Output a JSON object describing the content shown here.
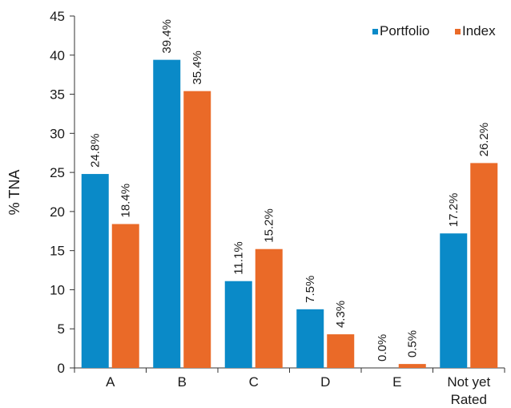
{
  "chart_data": {
    "type": "bar",
    "ylabel": "% TNA",
    "ylim": [
      0,
      45
    ],
    "yticks": [
      "0",
      "5",
      "10",
      "15",
      "20",
      "25",
      "30",
      "35",
      "40",
      "45"
    ],
    "categories": [
      [
        "A"
      ],
      [
        "B"
      ],
      [
        "C"
      ],
      [
        "D"
      ],
      [
        "E"
      ],
      [
        "Not yet",
        "Rated"
      ]
    ],
    "series": [
      {
        "name": "Portfolio",
        "color": "#0a8ac8",
        "values": [
          24.8,
          39.4,
          11.1,
          7.5,
          0.0,
          17.2
        ],
        "labels": [
          "24.8%",
          "39.4%",
          "11.1%",
          "7.5%",
          "0.0%",
          "17.2%"
        ]
      },
      {
        "name": "Index",
        "color": "#ea6a28",
        "values": [
          18.4,
          35.4,
          15.2,
          4.3,
          0.5,
          26.2
        ],
        "labels": [
          "18.4%",
          "35.4%",
          "15.2%",
          "4.3%",
          "0.5%",
          "26.2%"
        ]
      }
    ],
    "legend_position": "top-right",
    "grid": false
  }
}
